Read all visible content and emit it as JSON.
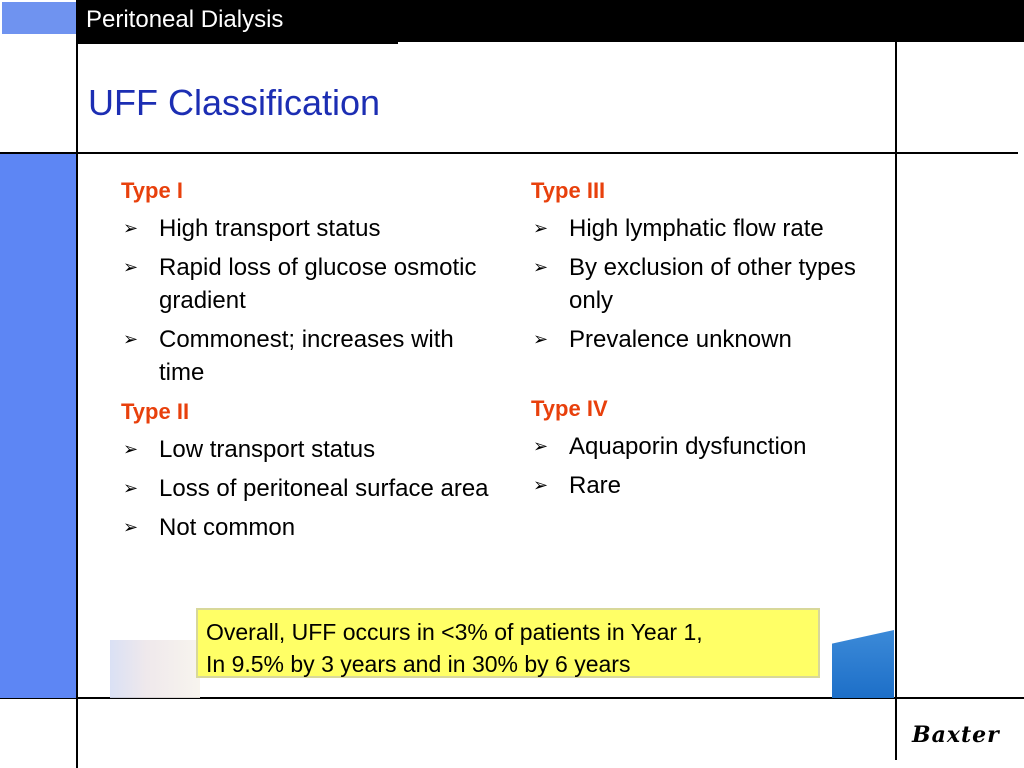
{
  "header": {
    "label": "Peritoneal Dialysis"
  },
  "slide": {
    "title": "UFF Classification"
  },
  "left_column": [
    {
      "type": "Type I",
      "items": [
        "High transport status",
        "Rapid loss of glucose osmotic gradient",
        "Commonest; increases with time"
      ]
    },
    {
      "type": "Type II",
      "items": [
        "Low transport status",
        "Loss of peritoneal surface area",
        "Not common"
      ]
    }
  ],
  "right_column": [
    {
      "type": "Type III",
      "items": [
        "High lymphatic flow rate",
        "By exclusion of other types only",
        "Prevalence unknown"
      ]
    },
    {
      "type": "Type IV",
      "items": [
        "Aquaporin dysfunction",
        "Rare"
      ]
    }
  ],
  "note": {
    "line1": "Overall, UFF occurs in <3% of patients in Year 1,",
    "line2": "In 9.5% by 3 years and in 30% by 6 years"
  },
  "footer": {
    "logo_text": "Baxter"
  },
  "colors": {
    "title": "#1c2eb3",
    "type_label": "#e8400c",
    "panel": "#5d86f4",
    "note_bg": "#ffff66"
  }
}
